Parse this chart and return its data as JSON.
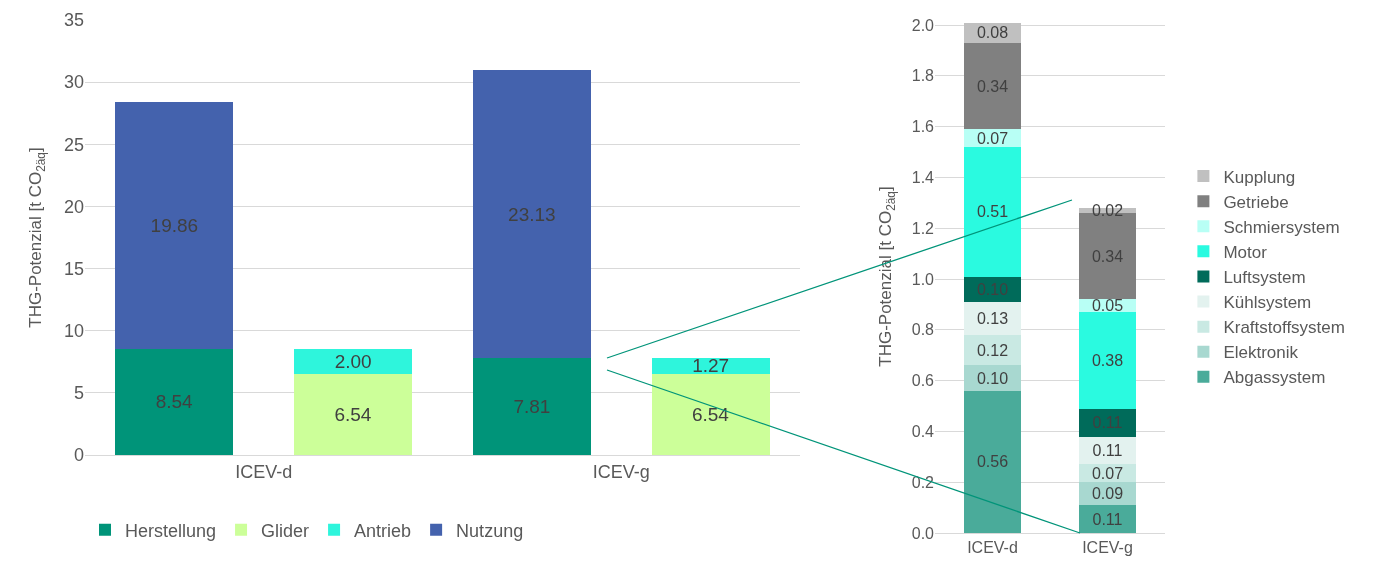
{
  "chart_data": [
    {
      "type": "bar",
      "stacked": true,
      "ylabel": "THG-Potenzial [t CO$_{2äq}$]",
      "categories": [
        "ICEV-d",
        null,
        "ICEV-g",
        null
      ],
      "ylim": [
        0,
        35
      ],
      "yticks": [
        0,
        5,
        10,
        15,
        20,
        25,
        30,
        35
      ],
      "grid": "y",
      "legend": "bottom",
      "series": [
        {
          "name": "Herstellung",
          "color": "#009479",
          "values": [
            8.54,
            null,
            7.81,
            null
          ],
          "value_labels": [
            "8.54",
            null,
            "7.81",
            null
          ]
        },
        {
          "name": "Glider",
          "color": "#ccff99",
          "values": [
            null,
            6.54,
            null,
            6.54
          ],
          "value_labels": [
            null,
            "6.54",
            null,
            "6.54"
          ]
        },
        {
          "name": "Antrieb",
          "color": "#2ef5dc",
          "values": [
            null,
            2.0,
            null,
            1.27
          ],
          "value_labels": [
            null,
            "2.00",
            null,
            "1.27"
          ]
        },
        {
          "name": "Nutzung",
          "color": "#4462ad",
          "values": [
            19.86,
            null,
            23.13,
            null
          ],
          "value_labels": [
            "19.86",
            null,
            "23.13",
            null
          ]
        }
      ]
    },
    {
      "type": "bar",
      "stacked": true,
      "ylabel": "THG-Potenzial [t CO$_{2äq}$]",
      "categories": [
        "ICEV-d",
        "ICEV-g"
      ],
      "ylim": [
        0,
        2.02
      ],
      "yticks": [
        {
          "value": 0,
          "label": "0.0"
        },
        {
          "value": 0.2,
          "label": "0.2"
        },
        {
          "value": 0.4,
          "label": "0.4"
        },
        {
          "value": 0.6,
          "label": "0.6"
        },
        {
          "value": 0.8,
          "label": "0.8"
        },
        {
          "value": 1,
          "label": "1.0"
        },
        {
          "value": 1.2,
          "label": "1.2"
        },
        {
          "value": 1.4,
          "label": "1.4"
        },
        {
          "value": 1.6,
          "label": "1.6"
        },
        {
          "value": 1.8,
          "label": "1.8"
        },
        {
          "value": 2,
          "label": "2.0"
        }
      ],
      "grid": "y",
      "legend": "right",
      "series": [
        {
          "name": "Abgassystem",
          "color": "#4aab9a",
          "values": [
            0.56,
            0.11
          ],
          "value_labels": [
            "0.56",
            "0.11"
          ]
        },
        {
          "name": "Elektronik",
          "color": "#a8d8d0",
          "values": [
            0.1,
            0.09
          ],
          "value_labels": [
            "0.10",
            "0.09"
          ]
        },
        {
          "name": "Kraftstoffsystem",
          "color": "#c9e9e3",
          "values": [
            0.12,
            0.07
          ],
          "value_labels": [
            "0.12",
            "0.07"
          ]
        },
        {
          "name": "Kühlsystem",
          "color": "#e3f2ef",
          "values": [
            0.13,
            0.11
          ],
          "value_labels": [
            "0.13",
            "0.11"
          ]
        },
        {
          "name": "Luftsystem",
          "color": "#006b5a",
          "values": [
            0.1,
            0.11
          ],
          "value_labels": [
            "0.10",
            "0.11"
          ]
        },
        {
          "name": "Motor",
          "color": "#2afae0",
          "values": [
            0.51,
            0.38
          ],
          "value_labels": [
            "0.51",
            "0.38"
          ]
        },
        {
          "name": "Schmiersystem",
          "color": "#b8fff5",
          "values": [
            0.07,
            0.05
          ],
          "value_labels": [
            "0.07",
            "0.05"
          ]
        },
        {
          "name": "Getriebe",
          "color": "#808080",
          "values": [
            0.34,
            0.34
          ],
          "value_labels": [
            "0.34",
            "0.34"
          ]
        },
        {
          "name": "Kupplung",
          "color": "#c0c0c0",
          "values": [
            0.08,
            0.02
          ],
          "value_labels": [
            "0.08",
            "0.02"
          ]
        }
      ]
    }
  ]
}
